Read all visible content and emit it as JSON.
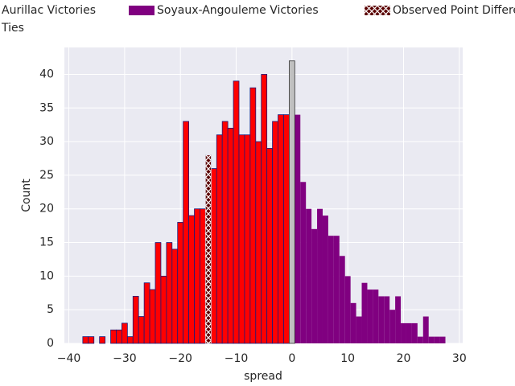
{
  "chart_data": {
    "type": "histogram",
    "xlabel": "spread",
    "ylabel": "Count",
    "xlim": [
      -40.8,
      30.6
    ],
    "ylim": [
      0,
      44
    ],
    "xticks": [
      {
        "value": -40,
        "label": "−40"
      },
      {
        "value": -30,
        "label": "−30"
      },
      {
        "value": -20,
        "label": "−20"
      },
      {
        "value": -10,
        "label": "−10"
      },
      0,
      10,
      20,
      30
    ],
    "yticks": [
      0,
      5,
      10,
      15,
      20,
      25,
      30,
      35,
      40
    ],
    "grid": true,
    "legend": "top",
    "series": [
      {
        "name": "Aurillac Victories",
        "color": "#ff0000",
        "edgecolor": "#1a1a7a",
        "bins": [
          -37.5,
          -36.5,
          -35.5,
          -34.5,
          -33.5,
          -32.5,
          -31.5,
          -30.5,
          -29.5,
          -28.5,
          -27.5,
          -26.5,
          -25.5,
          -24.5,
          -23.5,
          -22.5,
          -21.5,
          -20.5,
          -19.5,
          -18.5,
          -17.5,
          -16.5,
          -15.5,
          -14.5,
          -13.5,
          -12.5,
          -11.5,
          -10.5,
          -9.5,
          -8.5,
          -7.5,
          -6.5,
          -5.5,
          -4.5,
          -3.5,
          -2.5,
          -1.5,
          -0.5
        ],
        "values": [
          1,
          1,
          0,
          1,
          0,
          2,
          2,
          3,
          1,
          7,
          4,
          9,
          8,
          15,
          10,
          15,
          14,
          18,
          33,
          19,
          20,
          20,
          28,
          26,
          31,
          33,
          32,
          39,
          31,
          31,
          38,
          30,
          40,
          29,
          33,
          34,
          34
        ]
      },
      {
        "name": "Soyaux-Angouleme Victories",
        "color": "#800080",
        "bins": [
          0.5,
          1.5,
          2.5,
          3.5,
          4.5,
          5.5,
          6.5,
          7.5,
          8.5,
          9.5,
          10.5,
          11.5,
          12.5,
          13.5,
          14.5,
          15.5,
          16.5,
          17.5,
          18.5,
          19.5,
          20.5,
          21.5,
          22.5,
          23.5,
          24.5,
          25.5,
          26.5,
          27.5
        ],
        "values": [
          34,
          24,
          20,
          17,
          20,
          19,
          16,
          16,
          13,
          10,
          6,
          4,
          9,
          8,
          8,
          7,
          7,
          5,
          7,
          3,
          3,
          3,
          1,
          4,
          1,
          1,
          1
        ]
      },
      {
        "name": "Observed Point Difference",
        "color": "#5a0000",
        "hatch": "x",
        "bins": [
          -15.5,
          -14.5
        ],
        "values": [
          28
        ]
      },
      {
        "name": "Ties",
        "color": "#c0c0c0",
        "edgecolor": "#333333",
        "bins": [
          -0.5,
          0.5
        ],
        "values": [
          42
        ]
      }
    ]
  }
}
